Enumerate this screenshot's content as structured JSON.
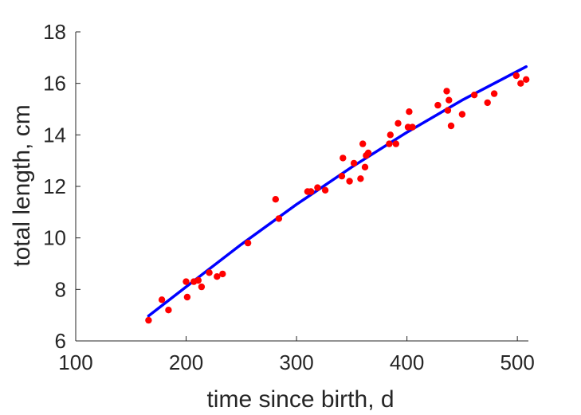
{
  "chart_data": {
    "type": "scatter",
    "title": "",
    "xlabel": "time since birth, d",
    "ylabel": "total length, cm",
    "xlim": [
      100,
      510
    ],
    "ylim": [
      6,
      18
    ],
    "xticks": [
      100,
      200,
      300,
      400,
      500
    ],
    "yticks": [
      6,
      8,
      10,
      12,
      14,
      16,
      18
    ],
    "grid": false,
    "colors": {
      "points": "#ff0000",
      "fit_line": "#0000ff",
      "axes": "#262626"
    },
    "series": [
      {
        "kind": "points",
        "x": [
          166,
          178,
          184,
          200,
          201,
          207,
          211,
          214,
          221,
          228,
          233,
          256,
          281,
          284,
          310,
          313,
          319,
          326,
          341,
          342,
          348,
          352,
          358,
          360,
          362,
          363,
          365,
          384,
          385,
          390,
          392,
          401,
          402,
          405,
          428,
          436,
          437,
          438,
          440,
          450,
          461,
          473,
          479,
          499,
          503,
          508
        ],
        "y": [
          6.8,
          7.6,
          7.2,
          8.3,
          7.7,
          8.3,
          8.35,
          8.1,
          8.65,
          8.5,
          8.6,
          9.8,
          11.5,
          10.75,
          11.8,
          11.8,
          11.95,
          11.85,
          12.4,
          13.1,
          12.2,
          12.9,
          12.3,
          13.65,
          12.75,
          13.2,
          13.3,
          13.65,
          14.0,
          13.65,
          14.45,
          14.3,
          14.9,
          14.3,
          15.15,
          15.7,
          14.95,
          15.35,
          14.35,
          14.8,
          15.55,
          15.25,
          15.6,
          16.3,
          16.0,
          16.15
        ]
      },
      {
        "kind": "line",
        "x": [
          166,
          200,
          250,
          300,
          350,
          400,
          450,
          508
        ],
        "y": [
          6.97,
          8.1,
          9.75,
          11.3,
          12.75,
          14.1,
          15.35,
          16.65
        ]
      }
    ]
  }
}
